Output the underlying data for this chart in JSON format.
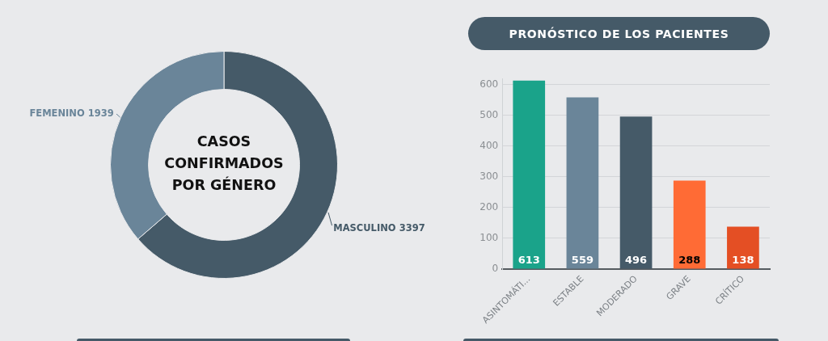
{
  "chart_data": [
    {
      "type": "donut",
      "title": "CASOS CONFIRMADOS POR GÉNERO",
      "categories": [
        "MASCULINO",
        "FEMENINO"
      ],
      "values": [
        3397,
        1939
      ],
      "colors": [
        "#455a68",
        "#6a8599"
      ],
      "data_labels": true
    },
    {
      "type": "bar",
      "title": "PRONÓSTICO DE LOS PACIENTES",
      "categories": [
        "ASINTOMÁTI...",
        "ESTABLE",
        "MODERADO",
        "GRAVE",
        "CRÍTICO"
      ],
      "values": [
        613,
        559,
        496,
        288,
        138
      ],
      "colors": [
        "#1aa38a",
        "#6a8599",
        "#455a68",
        "#ff6b35",
        "#e44f24"
      ],
      "ylim": [
        0,
        620
      ],
      "yticks": [
        0,
        100,
        200,
        300,
        400,
        500,
        600
      ],
      "grid": "y",
      "data_labels": true
    }
  ]
}
